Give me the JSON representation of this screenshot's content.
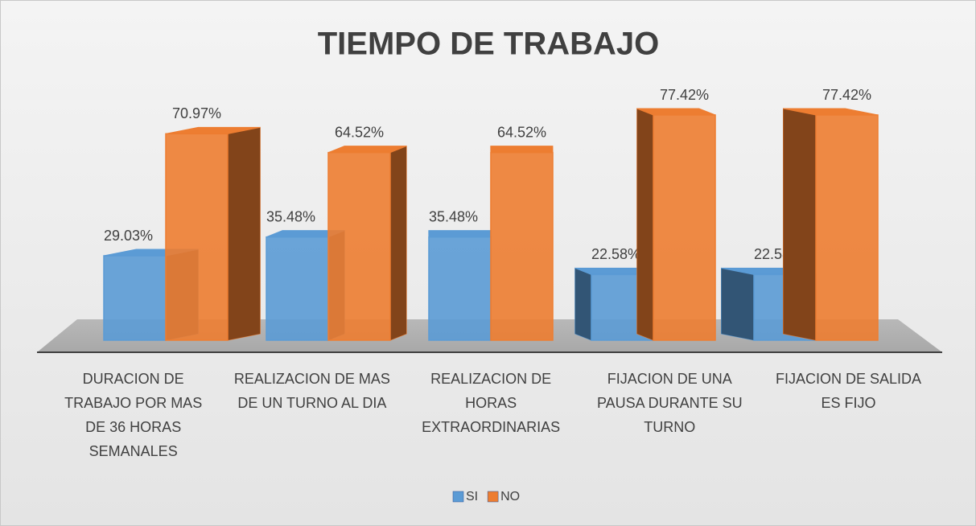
{
  "chart_data": {
    "type": "bar3d",
    "title": "TIEMPO DE TRABAJO",
    "categories": [
      "DURACION DE TRABAJO POR MAS DE 36 HORAS SEMANALES",
      "REALIZACION DE MAS DE UN TURNO AL DIA",
      "REALIZACION DE HORAS EXTRAORDINARIAS",
      "FIJACION DE UNA PAUSA DURANTE SU  TURNO",
      "FIJACION DE SALIDA ES FIJO"
    ],
    "series": [
      {
        "name": "SI",
        "color": "#5b9bd5",
        "values": [
          29.03,
          35.48,
          35.48,
          22.58,
          22.58
        ],
        "value_labels": [
          "29.03%",
          "35.48%",
          "35.48%",
          "22.58%",
          "22.58%"
        ]
      },
      {
        "name": "NO",
        "color": "#ed7d31",
        "values": [
          70.97,
          64.52,
          64.52,
          77.42,
          77.42
        ],
        "value_labels": [
          "70.97%",
          "64.52%",
          "64.52%",
          "77.42%",
          "77.42%"
        ]
      }
    ],
    "legend": "bottom"
  }
}
